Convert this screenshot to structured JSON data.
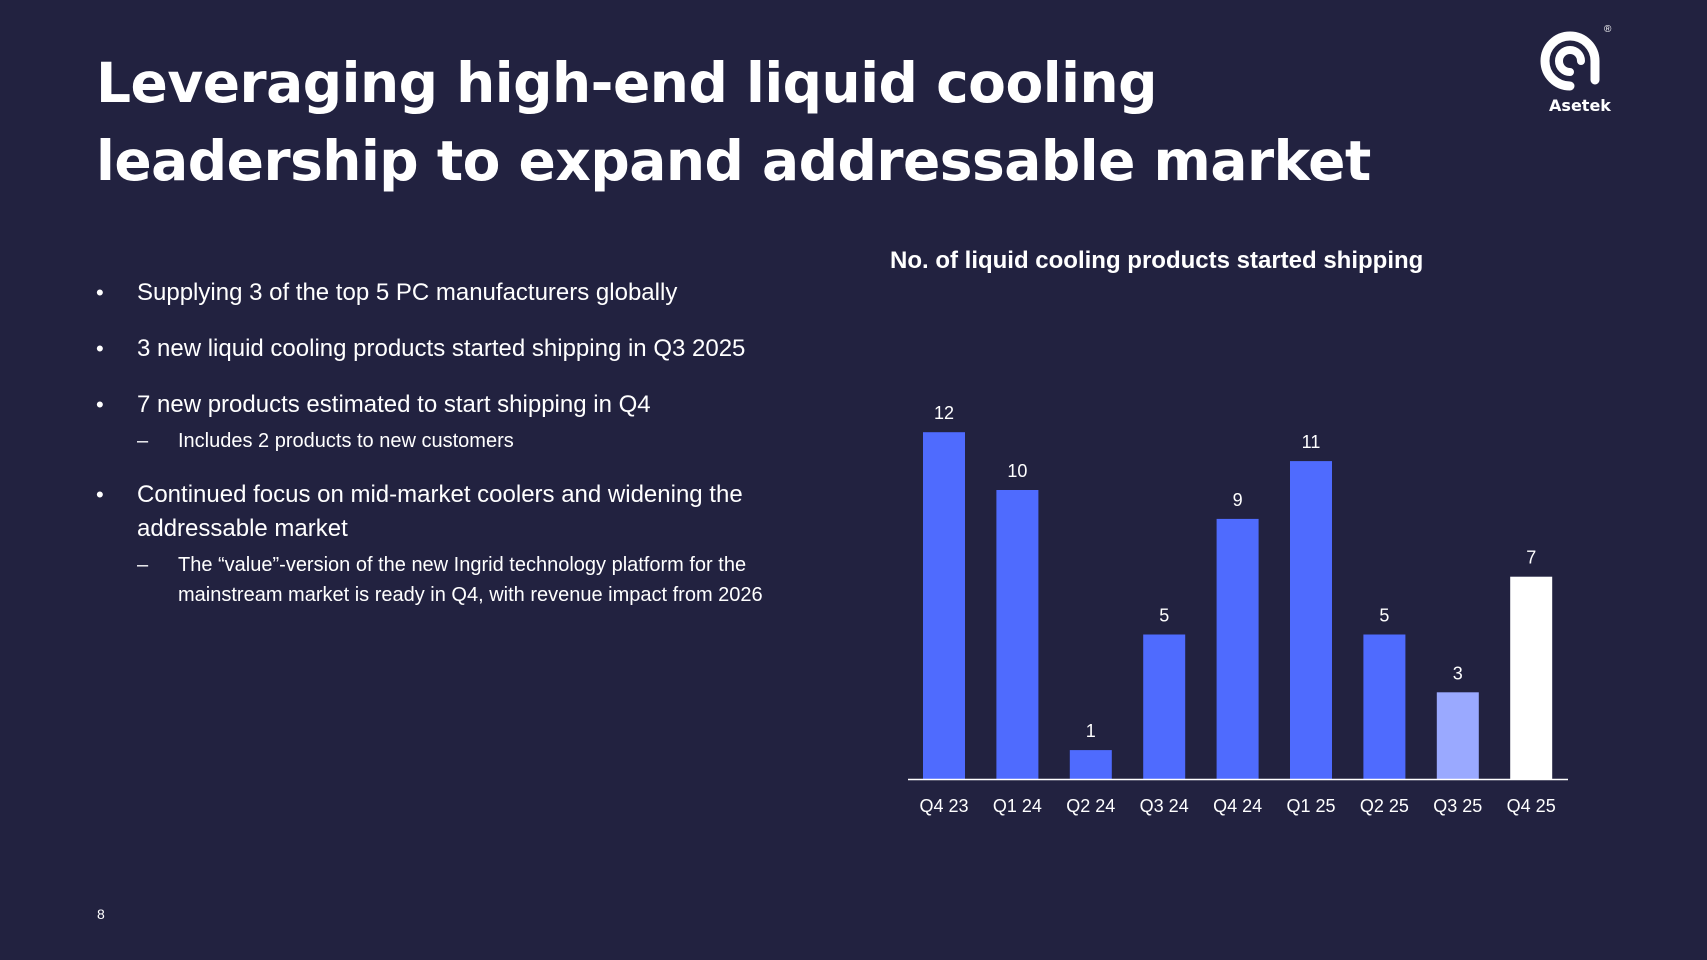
{
  "slide": {
    "title": "Leveraging high-end liquid cooling leadership to expand addressable market",
    "page_number": "8"
  },
  "logo": {
    "name": "Asetek",
    "registered_mark": "®"
  },
  "bullets": [
    {
      "text": "Supplying 3 of the top 5 PC manufacturers globally",
      "sub": []
    },
    {
      "text": "3 new liquid cooling products started shipping in Q3 2025",
      "sub": []
    },
    {
      "text": "7 new products estimated to start shipping in Q4",
      "sub": [
        "Includes 2 products to new customers"
      ]
    },
    {
      "text": "Continued focus on mid-market coolers and widening the addressable market",
      "sub": [
        "The “value”-version of the new Ingrid technology platform for the mainstream  market is ready in Q4, with revenue impact from 2026"
      ]
    }
  ],
  "chart_data": {
    "type": "bar",
    "title": "No. of liquid cooling products started shipping",
    "categories": [
      "Q4 23",
      "Q1 24",
      "Q2 24",
      "Q3 24",
      "Q4 24",
      "Q1 25",
      "Q2 25",
      "Q3 25",
      "Q4 25"
    ],
    "values": [
      12,
      10,
      1,
      5,
      9,
      11,
      5,
      3,
      7
    ],
    "bar_colors": [
      "#4f6bfe",
      "#4f6bfe",
      "#4f6bfe",
      "#4f6bfe",
      "#4f6bfe",
      "#4f6bfe",
      "#4f6bfe",
      "#9aa9ff",
      "#ffffff"
    ],
    "label_color": "#ffffff",
    "axis_color": "#ffffff",
    "ylim": [
      0,
      12
    ],
    "grid": false,
    "legend": "none",
    "data_labels": true,
    "xlabel": "",
    "ylabel": ""
  }
}
